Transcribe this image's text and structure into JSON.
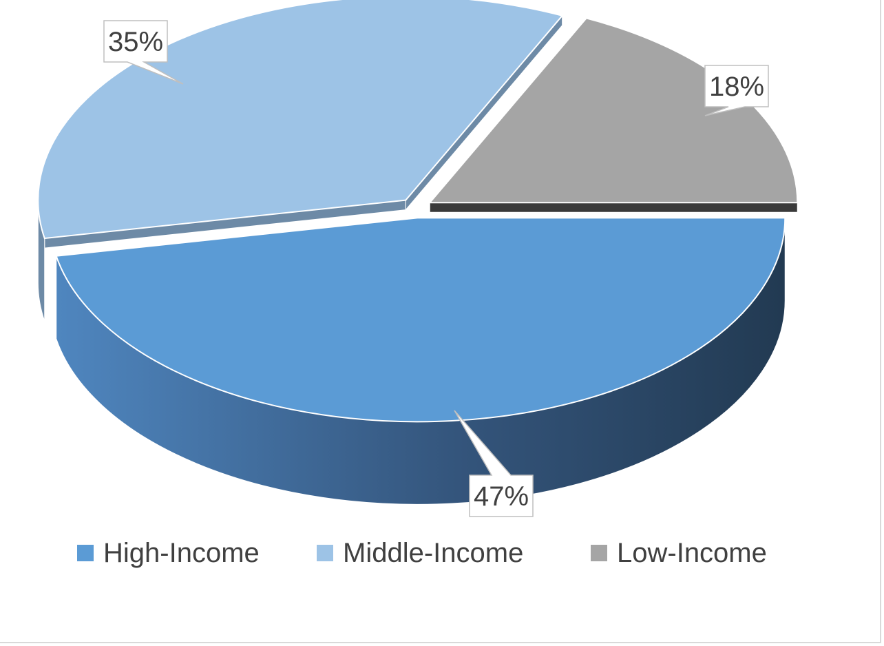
{
  "chart_data": {
    "type": "pie",
    "style": "3d-exploded",
    "categories": [
      "High-Income",
      "Middle-Income",
      "Low-Income"
    ],
    "values": [
      47,
      35,
      18
    ],
    "unit": "%",
    "data_labels": [
      "47%",
      "35%",
      "18%"
    ],
    "colors": [
      "#5b9bd5",
      "#9dc3e6",
      "#a5a5a5"
    ],
    "legend": {
      "position": "bottom",
      "entries": [
        "High-Income",
        "Middle-Income",
        "Low-Income"
      ]
    },
    "title": ""
  }
}
